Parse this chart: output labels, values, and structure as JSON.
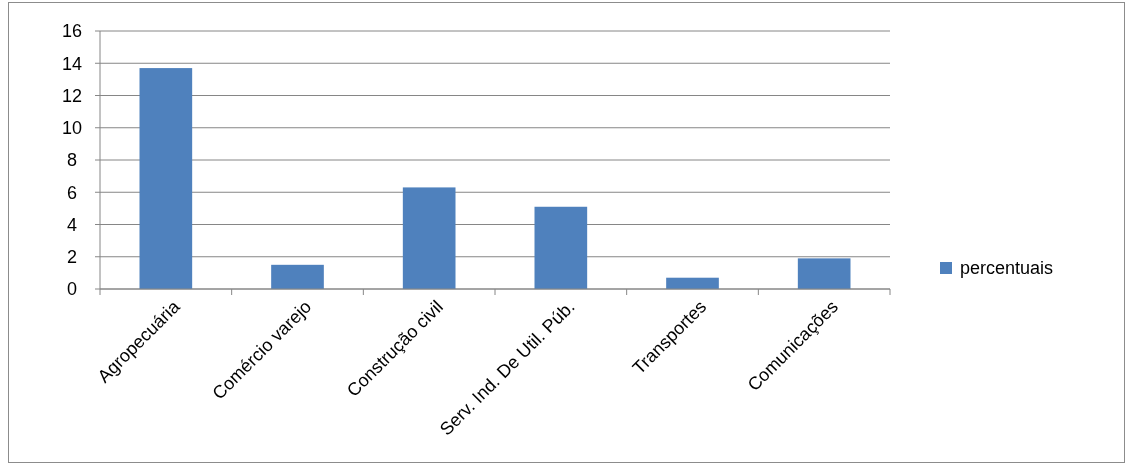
{
  "chart_data": {
    "type": "bar",
    "categories": [
      "Agropecuária",
      "Comércio varejo",
      "Construção civil",
      "Serv. Ind. De Util. Púb.",
      "Transportes",
      "Comunicações"
    ],
    "series": [
      {
        "name": "percentuais",
        "color": "#4f81bd",
        "values": [
          13.7,
          1.5,
          6.3,
          5.1,
          0.7,
          1.9
        ]
      }
    ],
    "ylim": [
      0,
      16
    ],
    "yticks": [
      0,
      2,
      4,
      6,
      8,
      10,
      12,
      14,
      16
    ],
    "grid": "y",
    "legend": "right"
  }
}
